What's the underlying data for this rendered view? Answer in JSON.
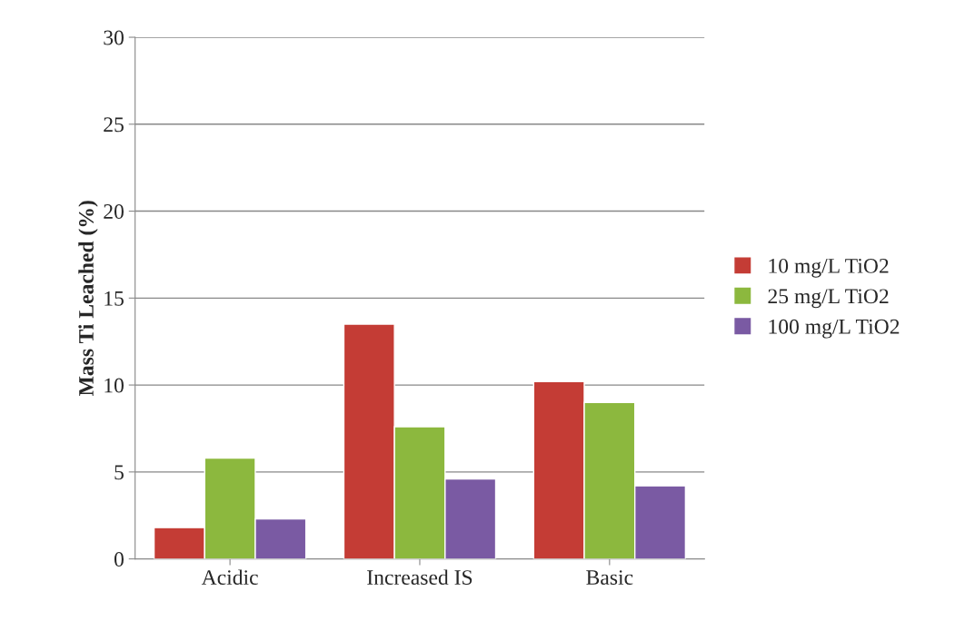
{
  "chart_data": {
    "type": "bar",
    "ylabel": "Mass Ti Leached (%)",
    "categories": [
      "Acidic",
      "Increased IS",
      "Basic"
    ],
    "series": [
      {
        "name": "10 mg/L TiO2",
        "color": "#c43c35",
        "values": [
          1.8,
          13.5,
          10.2
        ]
      },
      {
        "name": "25 mg/L TiO2",
        "color": "#8cb83e",
        "values": [
          5.8,
          7.6,
          9.0
        ]
      },
      {
        "name": "100 mg/L TiO2",
        "color": "#7a5aa3",
        "values": [
          2.3,
          4.6,
          4.2
        ]
      }
    ],
    "ylim": [
      0,
      30
    ],
    "yticks": [
      0,
      5,
      10,
      15,
      20,
      25,
      30
    ],
    "grid": "y",
    "legend": "right"
  }
}
